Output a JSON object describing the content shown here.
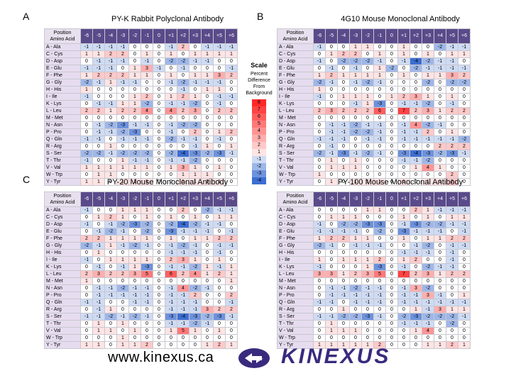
{
  "positions": [
    "-6",
    "-5",
    "-4",
    "-3",
    "-2",
    "-1",
    "0",
    "+1",
    "+2",
    "+3",
    "+4",
    "+5",
    "+6"
  ],
  "position_header": "Position",
  "aa_header": "Amino Acid",
  "row_labels": [
    "A - Ala",
    "C - Cys",
    "D - Asp",
    "E - Glu",
    "F - Phe",
    "G - Gly",
    "H - His",
    "I - Ile",
    "K - Lys",
    "L - Leu",
    "M - Met",
    "N - Asn",
    "P - Pro",
    "Q - Gln",
    "R - Arg",
    "S - Ser",
    "T - Thr",
    "V - Val",
    "W - Trp",
    "Y - Tyr"
  ],
  "panels": [
    {
      "letter": "A",
      "title": "PY-K Rabbit Polyclonal Antibody",
      "values": [
        [
          -1,
          -1,
          -1,
          -1,
          0,
          0,
          0,
          -1,
          2,
          0,
          -1,
          -1,
          -1
        ],
        [
          1,
          1,
          2,
          2,
          0,
          1,
          0,
          1,
          0,
          1,
          1,
          1,
          1
        ],
        [
          0,
          -1,
          -1,
          -1,
          0,
          -1,
          0,
          -2,
          -2,
          -1,
          -1,
          0,
          0
        ],
        [
          -1,
          -1,
          -1,
          0,
          1,
          3,
          -1,
          0,
          -1,
          0,
          0,
          0,
          -1
        ],
        [
          1,
          2,
          2,
          2,
          1,
          1,
          0,
          1,
          0,
          1,
          1,
          3,
          2
        ],
        [
          -2,
          -1,
          1,
          -1,
          -1,
          0,
          0,
          -1,
          -2,
          -1,
          -1,
          -1,
          0
        ],
        [
          1,
          0,
          0,
          0,
          0,
          0,
          0,
          0,
          -1,
          0,
          1,
          1,
          0
        ],
        [
          -1,
          0,
          0,
          0,
          1,
          2,
          0,
          1,
          2,
          1,
          0,
          -1,
          -1
        ],
        [
          0,
          -1,
          -1,
          1,
          1,
          -2,
          0,
          -1,
          -1,
          -2,
          0,
          -1,
          0
        ],
        [
          2,
          2,
          1,
          2,
          2,
          4,
          0,
          4,
          2,
          3,
          0,
          2,
          2
        ],
        [
          0,
          0,
          0,
          0,
          0,
          0,
          0,
          0,
          0,
          0,
          0,
          0,
          0
        ],
        [
          0,
          -1,
          -2,
          -3,
          -1,
          -1,
          0,
          -1,
          -2,
          -2,
          0,
          0,
          0
        ],
        [
          0,
          -1,
          -1,
          -2,
          -3,
          0,
          0,
          -1,
          0,
          2,
          0,
          1,
          2
        ],
        [
          -1,
          -1,
          0,
          -1,
          -1,
          -1,
          0,
          -2,
          -1,
          -1,
          0,
          -1,
          0
        ],
        [
          0,
          0,
          1,
          0,
          0,
          0,
          0,
          0,
          0,
          -1,
          1,
          0,
          1
        ],
        [
          -2,
          -2,
          -1,
          -2,
          -2,
          -2,
          0,
          -2,
          -4,
          -3,
          -2,
          -3,
          -1
        ],
        [
          -1,
          0,
          0,
          1,
          -1,
          -1,
          0,
          -1,
          -1,
          -2,
          0,
          0,
          0
        ],
        [
          1,
          1,
          1,
          1,
          1,
          1,
          0,
          1,
          3,
          1,
          0,
          1,
          0
        ],
        [
          0,
          1,
          1,
          0,
          0,
          0,
          0,
          0,
          1,
          1,
          1,
          0,
          0
        ],
        [
          1,
          1,
          0,
          1,
          1,
          1,
          0,
          0,
          1,
          1,
          1,
          1,
          0
        ]
      ]
    },
    {
      "letter": "B",
      "title": "4G10 Mouse Monoclonal Antibody",
      "values": [
        [
          -1,
          0,
          0,
          1,
          1,
          0,
          0,
          1,
          0,
          0,
          -2,
          -1,
          -1
        ],
        [
          0,
          1,
          2,
          2,
          0,
          1,
          0,
          1,
          0,
          1,
          0,
          1,
          1
        ],
        [
          -1,
          0,
          -2,
          -2,
          -2,
          -1,
          0,
          -1,
          -4,
          -2,
          -1,
          -1,
          0
        ],
        [
          0,
          -1,
          0,
          -1,
          0,
          1,
          -2,
          0,
          -2,
          -1,
          -1,
          -1,
          -1
        ],
        [
          1,
          2,
          1,
          1,
          1,
          1,
          0,
          1,
          0,
          1,
          1,
          3,
          2
        ],
        [
          -2,
          -1,
          0,
          -1,
          -2,
          -1,
          0,
          0,
          0,
          -2,
          0,
          -2,
          -2
        ],
        [
          1,
          0,
          0,
          0,
          0,
          0,
          0,
          0,
          0,
          0,
          0,
          0,
          0
        ],
        [
          -1,
          0,
          1,
          1,
          1,
          0,
          1,
          2,
          3,
          1,
          0,
          1,
          0
        ],
        [
          0,
          0,
          0,
          -1,
          1,
          -3,
          0,
          -1,
          -1,
          -2,
          0,
          -1,
          0
        ],
        [
          2,
          3,
          2,
          2,
          2,
          6,
          0,
          7,
          2,
          3,
          1,
          2,
          2
        ],
        [
          0,
          0,
          0,
          0,
          0,
          0,
          0,
          0,
          0,
          0,
          0,
          0,
          0
        ],
        [
          0,
          -1,
          -1,
          -2,
          -1,
          -1,
          0,
          -1,
          4,
          -2,
          -1,
          0,
          0
        ],
        [
          0,
          -1,
          -1,
          -2,
          -2,
          -1,
          0,
          -1,
          -1,
          2,
          0,
          1,
          0
        ],
        [
          -1,
          -1,
          -1,
          0,
          -1,
          -1,
          0,
          -1,
          -1,
          -1,
          -1,
          -1,
          -2
        ],
        [
          0,
          -1,
          0,
          0,
          0,
          0,
          0,
          0,
          0,
          0,
          2,
          2,
          2
        ],
        [
          -2,
          -1,
          -3,
          -1,
          -2,
          -1,
          0,
          -3,
          -4,
          -3,
          -2,
          -3,
          -1
        ],
        [
          0,
          1,
          0,
          1,
          0,
          0,
          0,
          -1,
          -1,
          -2,
          0,
          0,
          0
        ],
        [
          0,
          1,
          1,
          1,
          0,
          0,
          0,
          0,
          1,
          4,
          1,
          0,
          0
        ],
        [
          1,
          0,
          0,
          0,
          0,
          0,
          0,
          0,
          0,
          0,
          0,
          2,
          0
        ],
        [
          0,
          1,
          0,
          1,
          1,
          1,
          0,
          1,
          0,
          1,
          1,
          2,
          0
        ]
      ]
    },
    {
      "letter": "C",
      "title": "PY-20 Mouse Monoclonal Antibody",
      "values": [
        [
          -1,
          0,
          0,
          1,
          1,
          1,
          0,
          0,
          2,
          0,
          -2,
          -1,
          -1
        ],
        [
          0,
          1,
          2,
          1,
          0,
          1,
          0,
          1,
          0,
          1,
          0,
          1,
          1
        ],
        [
          -1,
          0,
          -1,
          -2,
          -3,
          -2,
          0,
          -2,
          -4,
          -2,
          -1,
          -1,
          0
        ],
        [
          0,
          -1,
          -2,
          -1,
          0,
          -2,
          0,
          -3,
          -1,
          -1,
          -1,
          0,
          -1
        ],
        [
          2,
          2,
          1,
          1,
          1,
          1,
          0,
          1,
          0,
          1,
          1,
          2,
          2
        ],
        [
          -2,
          -1,
          1,
          -1,
          -2,
          -1,
          0,
          -1,
          -2,
          -1,
          0,
          -1,
          -1
        ],
        [
          0,
          1,
          0,
          0,
          0,
          0,
          0,
          -1,
          -1,
          -1,
          0,
          -1,
          0
        ],
        [
          -1,
          0,
          1,
          1,
          1,
          1,
          0,
          2,
          3,
          1,
          0,
          1,
          0
        ],
        [
          0,
          -1,
          0,
          -1,
          1,
          -3,
          0,
          -1,
          -1,
          -2,
          1,
          -1,
          1
        ],
        [
          2,
          3,
          2,
          2,
          3,
          5,
          0,
          6,
          2,
          4,
          1,
          2,
          1
        ],
        [
          1,
          0,
          0,
          0,
          0,
          0,
          0,
          0,
          0,
          0,
          0,
          0,
          1
        ],
        [
          0,
          -1,
          -1,
          -2,
          -1,
          -1,
          0,
          -1,
          4,
          -2,
          -1,
          0,
          0
        ],
        [
          0,
          -1,
          -1,
          -1,
          -1,
          -1,
          0,
          -1,
          -1,
          2,
          0,
          0,
          2
        ],
        [
          -1,
          -1,
          0,
          0,
          -1,
          -1,
          0,
          -1,
          -1,
          -1,
          0,
          0,
          -1
        ],
        [
          0,
          -1,
          1,
          0,
          0,
          0,
          0,
          -1,
          -1,
          -1,
          3,
          2,
          2
        ],
        [
          -1,
          -1,
          -2,
          -1,
          -2,
          -1,
          0,
          -3,
          -4,
          -3,
          -2,
          -3,
          -1
        ],
        [
          0,
          1,
          0,
          1,
          0,
          0,
          0,
          -1,
          -1,
          -2,
          -1,
          0,
          0
        ],
        [
          0,
          1,
          1,
          0,
          1,
          0,
          0,
          1,
          5,
          1,
          0,
          1,
          0
        ],
        [
          0,
          0,
          0,
          1,
          0,
          0,
          0,
          0,
          0,
          0,
          0,
          0,
          0
        ],
        [
          1,
          1,
          0,
          1,
          1,
          2,
          0,
          0,
          0,
          0,
          1,
          2,
          1
        ]
      ]
    },
    {
      "letter": "D",
      "title": "PY-100 Mouse Monoclonal Antibody",
      "values": [
        [
          0,
          0,
          0,
          0,
          1,
          1,
          0,
          0,
          2,
          1,
          -1,
          -1,
          -1
        ],
        [
          0,
          1,
          1,
          1,
          0,
          0,
          0,
          1,
          0,
          1,
          0,
          1,
          1
        ],
        [
          -1,
          0,
          -2,
          -2,
          -3,
          -3,
          0,
          -1,
          -3,
          -2,
          -2,
          -1,
          -1
        ],
        [
          -1,
          -1,
          -1,
          -1,
          0,
          -2,
          0,
          -3,
          -1,
          -1,
          -1,
          0,
          -1
        ],
        [
          1,
          2,
          2,
          1,
          1,
          0,
          0,
          1,
          0,
          1,
          1,
          2,
          2
        ],
        [
          -2,
          -1,
          0,
          -1,
          -1,
          -1,
          0,
          0,
          -1,
          -2,
          0,
          -1,
          -1
        ],
        [
          0,
          0,
          0,
          0,
          0,
          0,
          0,
          -1,
          -1,
          -1,
          0,
          -1,
          0
        ],
        [
          1,
          0,
          1,
          1,
          1,
          2,
          0,
          1,
          2,
          0,
          0,
          -1,
          0
        ],
        [
          -1,
          0,
          0,
          0,
          1,
          -3,
          0,
          -1,
          0,
          -2,
          -1,
          -1,
          0
        ],
        [
          3,
          3,
          1,
          2,
          3,
          5,
          0,
          7,
          2,
          3,
          1,
          2,
          2
        ],
        [
          0,
          0,
          0,
          0,
          0,
          0,
          0,
          0,
          0,
          0,
          0,
          0,
          0
        ],
        [
          0,
          -1,
          -1,
          -2,
          -1,
          -1,
          0,
          -1,
          3,
          -2,
          0,
          0,
          0
        ],
        [
          0,
          -1,
          -1,
          -1,
          -1,
          -1,
          0,
          -1,
          -1,
          3,
          -1,
          0,
          1
        ],
        [
          -1,
          -1,
          0,
          -1,
          -1,
          -1,
          0,
          -1,
          -1,
          -1,
          -1,
          -1,
          -1
        ],
        [
          0,
          0,
          1,
          0,
          0,
          0,
          0,
          0,
          1,
          -1,
          3,
          1,
          1
        ],
        [
          -1,
          -1,
          -2,
          -2,
          -3,
          -1,
          0,
          -2,
          -3,
          -2,
          -2,
          -2,
          -1
        ],
        [
          0,
          1,
          0,
          0,
          0,
          0,
          0,
          -1,
          -1,
          -1,
          0,
          -2,
          0
        ],
        [
          0,
          1,
          1,
          1,
          0,
          0,
          0,
          0,
          1,
          4,
          0,
          0,
          0
        ],
        [
          0,
          0,
          0,
          0,
          0,
          0,
          0,
          0,
          0,
          0,
          0,
          0,
          0
        ],
        [
          1,
          1,
          1,
          1,
          1,
          2,
          0,
          0,
          0,
          1,
          1,
          2,
          1
        ]
      ]
    }
  ],
  "scale": {
    "title": "Scale",
    "subtitle": [
      "Percent",
      "Difference",
      "From",
      "Background"
    ],
    "levels": [
      "8",
      "7",
      "6",
      "5",
      "4",
      "3",
      "2",
      "1",
      "-1",
      "-2",
      "-3",
      "-4"
    ]
  },
  "colors": {
    "positive_max": "#ee3333",
    "negative_max": "#3366cc",
    "neutral": "#ffffff",
    "header_bg": "#5a4a8a",
    "row_label_bg": "#e6dcef",
    "brand": "#3a2a7e"
  },
  "footer": {
    "url": "www.kinexus.ca",
    "brand": "KINEXUS"
  }
}
